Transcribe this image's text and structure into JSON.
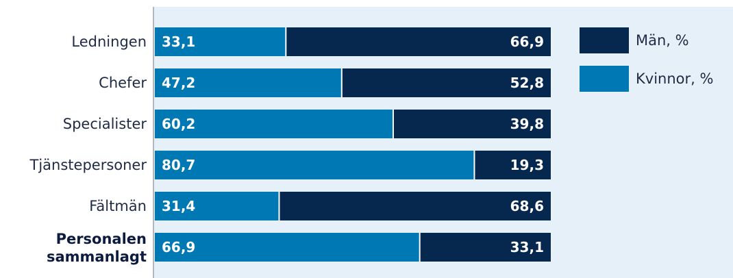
{
  "chart_data": {
    "type": "bar",
    "orientation": "horizontal",
    "stacked": true,
    "categories": [
      "Ledningen",
      "Chefer",
      "Specialister",
      "Tjänstepersoner",
      "Fältmän",
      "Personalen sammanlagt"
    ],
    "emphasized_category": "Personalen sammanlagt",
    "series": [
      {
        "name": "Kvinnor, %",
        "color": "#0078b4",
        "values": [
          33.1,
          47.2,
          60.2,
          80.7,
          31.4,
          66.9
        ]
      },
      {
        "name": "Män, %",
        "color": "#06284f",
        "values": [
          66.9,
          52.8,
          39.8,
          19.3,
          68.6,
          33.1
        ]
      }
    ],
    "value_labels": {
      "Kvinnor, %": [
        "33,1",
        "47,2",
        "60,2",
        "80,7",
        "31,4",
        "66,9"
      ],
      "Män, %": [
        "66,9",
        "52,8",
        "39,8",
        "19,3",
        "68,6",
        "33,1"
      ]
    },
    "xlim": [
      0,
      100
    ],
    "legend": {
      "placement": "top-right",
      "entries": [
        {
          "label": "Män, %",
          "color": "#06284f"
        },
        {
          "label": "Kvinnor, %",
          "color": "#0078b4"
        }
      ]
    },
    "plot_background": "#e6f0f8",
    "grid": false,
    "title": "",
    "xlabel": "",
    "ylabel": ""
  }
}
